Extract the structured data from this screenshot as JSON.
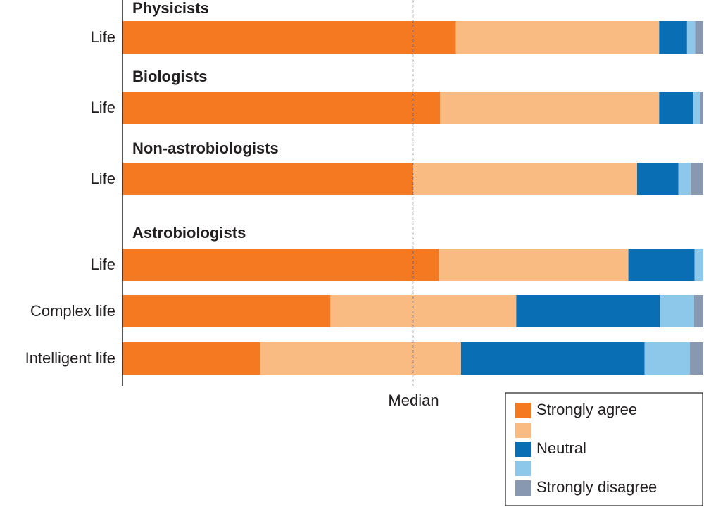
{
  "chart_data": {
    "type": "bar",
    "orientation": "horizontal",
    "stacked": true,
    "normalized_to": 100,
    "xlim": [
      0,
      100
    ],
    "median_label": "Median",
    "median_value": 50,
    "groups": [
      {
        "title": "Physicists",
        "rows": [
          {
            "label": "Life",
            "values": [
              57.4,
              35.0,
              4.8,
              1.4,
              1.4
            ]
          }
        ]
      },
      {
        "title": "Biologists",
        "rows": [
          {
            "label": "Life",
            "values": [
              54.7,
              37.7,
              5.9,
              1.1,
              0.6
            ]
          }
        ]
      },
      {
        "title": "Non-astrobiologists",
        "rows": [
          {
            "label": "Life",
            "values": [
              50.0,
              38.6,
              7.1,
              2.1,
              2.2
            ]
          }
        ]
      },
      {
        "title": "Astrobiologists",
        "rows": [
          {
            "label": "Life",
            "values": [
              54.5,
              32.6,
              11.4,
              1.5,
              0.0
            ]
          },
          {
            "label": "Complex life",
            "values": [
              35.8,
              32.0,
              24.7,
              5.9,
              1.6
            ]
          },
          {
            "label": "Intelligent life",
            "values": [
              23.7,
              34.6,
              31.6,
              7.8,
              2.3
            ]
          }
        ]
      }
    ],
    "legend": {
      "placement": "bottom-right",
      "entries": [
        {
          "label": "Strongly agree",
          "color": "#f47920"
        },
        {
          "label": "",
          "color": "#f9bb81"
        },
        {
          "label": "Neutral",
          "color": "#0a6eb4"
        },
        {
          "label": "",
          "color": "#8dc8eb"
        },
        {
          "label": "Strongly disagree",
          "color": "#8898b0"
        }
      ]
    }
  }
}
